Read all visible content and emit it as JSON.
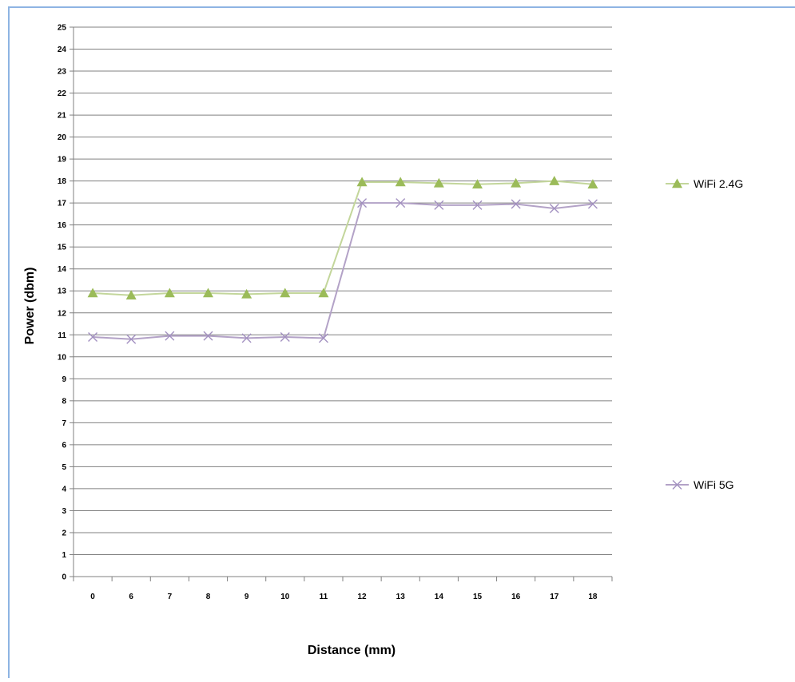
{
  "chart_data": {
    "type": "line",
    "title": "",
    "xlabel": "Distance (mm)",
    "ylabel": "Power (dbm)",
    "categories": [
      "0",
      "6",
      "7",
      "8",
      "9",
      "10",
      "11",
      "12",
      "13",
      "14",
      "15",
      "16",
      "17",
      "18"
    ],
    "ylim": [
      0,
      25
    ],
    "yticks": [
      "0",
      "1",
      "2",
      "3",
      "4",
      "5",
      "6",
      "7",
      "8",
      "9",
      "10",
      "11",
      "12",
      "13",
      "14",
      "15",
      "16",
      "17",
      "18",
      "19",
      "20",
      "21",
      "22",
      "23",
      "24",
      "25"
    ],
    "grid": true,
    "legend_position": "right",
    "series": [
      {
        "name": "WiFi 2.4G",
        "marker": "triangle",
        "color": "#9bbb59",
        "values": [
          12.9,
          12.8,
          12.9,
          12.9,
          12.85,
          12.9,
          12.9,
          17.95,
          17.95,
          17.9,
          17.85,
          17.9,
          18.0,
          17.85
        ]
      },
      {
        "name": "WiFi 5G",
        "marker": "x",
        "color": "#8064a2",
        "values": [
          10.9,
          10.8,
          10.95,
          10.95,
          10.85,
          10.9,
          10.85,
          17.0,
          17.0,
          16.9,
          16.9,
          16.95,
          16.75,
          16.95
        ]
      }
    ]
  },
  "colors": {
    "gridline": "#808080",
    "frame_border": "#8eb4e3",
    "series_2_4g_line": "#c3d69b",
    "series_2_4g_marker": "#9bbb59",
    "series_5g_line": "#b3a2c7",
    "series_5g_marker": "#a391c1"
  }
}
